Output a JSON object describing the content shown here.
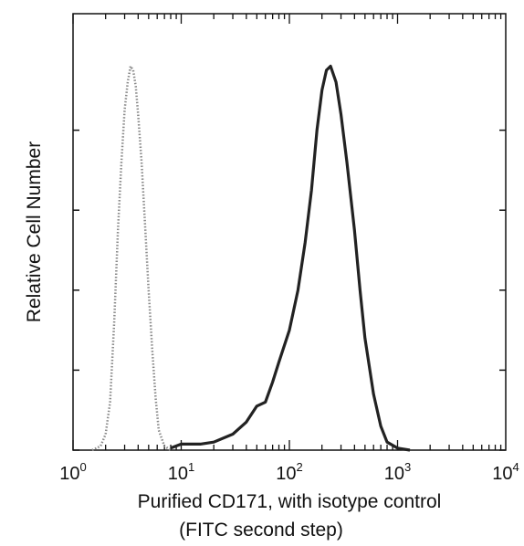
{
  "chart_data": {
    "type": "line",
    "title": "",
    "xlabel": "Purified CD171, with isotype control",
    "xlabel_line2": "(FITC second step)",
    "ylabel": "Relative Cell Number",
    "x_scale": "log",
    "xlim": [
      1,
      10000
    ],
    "ylim": [
      0,
      100
    ],
    "grid": false,
    "legend": "none",
    "x_ticks": [
      {
        "base": "10",
        "exp": "0",
        "value": 1
      },
      {
        "base": "10",
        "exp": "1",
        "value": 10
      },
      {
        "base": "10",
        "exp": "2",
        "value": 100
      },
      {
        "base": "10",
        "exp": "3",
        "value": 1000
      },
      {
        "base": "10",
        "exp": "4",
        "value": 10000
      }
    ],
    "y_ticks": [
      0,
      20,
      40,
      60,
      80
    ],
    "series": [
      {
        "style": "dotted",
        "color": "#8a8a8a",
        "points": [
          [
            1.5,
            0
          ],
          [
            1.8,
            1
          ],
          [
            2.0,
            4
          ],
          [
            2.2,
            12
          ],
          [
            2.4,
            32
          ],
          [
            2.6,
            55
          ],
          [
            2.8,
            72
          ],
          [
            3.0,
            85
          ],
          [
            3.2,
            92
          ],
          [
            3.4,
            96
          ],
          [
            3.6,
            95
          ],
          [
            3.8,
            91
          ],
          [
            4.0,
            84
          ],
          [
            4.3,
            72
          ],
          [
            4.6,
            58
          ],
          [
            5.0,
            40
          ],
          [
            5.4,
            25
          ],
          [
            5.8,
            13
          ],
          [
            6.2,
            5
          ],
          [
            7.0,
            1
          ],
          [
            8.0,
            0
          ]
        ]
      },
      {
        "style": "solid",
        "color": "#222222",
        "points": [
          [
            8,
            0.5
          ],
          [
            10,
            1.5
          ],
          [
            15,
            1.5
          ],
          [
            20,
            2
          ],
          [
            30,
            4
          ],
          [
            40,
            7
          ],
          [
            50,
            11
          ],
          [
            60,
            12
          ],
          [
            70,
            17
          ],
          [
            80,
            22
          ],
          [
            100,
            30
          ],
          [
            120,
            40
          ],
          [
            140,
            52
          ],
          [
            160,
            65
          ],
          [
            180,
            80
          ],
          [
            200,
            90
          ],
          [
            220,
            95
          ],
          [
            240,
            96
          ],
          [
            270,
            92
          ],
          [
            300,
            84
          ],
          [
            340,
            72
          ],
          [
            400,
            55
          ],
          [
            450,
            40
          ],
          [
            500,
            28
          ],
          [
            600,
            14
          ],
          [
            700,
            6
          ],
          [
            800,
            2
          ],
          [
            1000,
            0.5
          ],
          [
            1300,
            0
          ]
        ]
      }
    ]
  }
}
